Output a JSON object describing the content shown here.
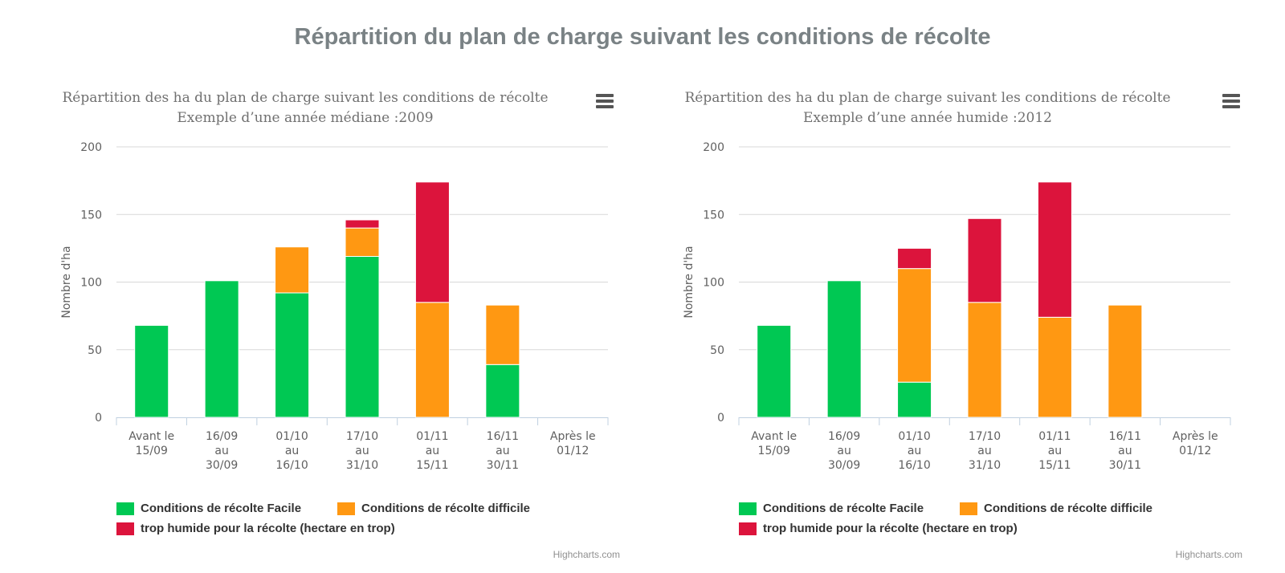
{
  "page_title": "Répartition du plan de charge suivant les conditions de récolte",
  "credits": "Highcharts.com",
  "colors": {
    "facile": "#00c853",
    "difficile": "#ff9812",
    "humide": "#dc143c"
  },
  "chart_data": [
    {
      "type": "bar",
      "stacked": true,
      "title": "Répartition des ha du plan de charge suivant les conditions de récolte",
      "subtitle": "Exemple d’une année médiane :2009",
      "ylabel": "Nombre d'ha",
      "ylim": [
        0,
        200
      ],
      "yticks": [
        0,
        50,
        100,
        150,
        200
      ],
      "categories": [
        [
          "Avant le",
          "15/09"
        ],
        [
          "16/09",
          "au",
          "30/09"
        ],
        [
          "01/10",
          "au",
          "16/10"
        ],
        [
          "17/10",
          "au",
          "31/10"
        ],
        [
          "01/11",
          "au",
          "15/11"
        ],
        [
          "16/11",
          "au",
          "30/11"
        ],
        [
          "Après le",
          "01/12"
        ]
      ],
      "series": [
        {
          "name": "Conditions de récolte Facile",
          "color": "#00c853",
          "values": [
            68,
            101,
            92,
            119,
            0,
            39,
            0
          ]
        },
        {
          "name": "Conditions de récolte difficile",
          "color": "#ff9812",
          "values": [
            0,
            0,
            34,
            21,
            85,
            44,
            0
          ]
        },
        {
          "name": "trop humide pour la récolte (hectare en trop)",
          "color": "#dc143c",
          "values": [
            0,
            0,
            0,
            6,
            89,
            0,
            0
          ]
        }
      ],
      "legend_position": "bottom"
    },
    {
      "type": "bar",
      "stacked": true,
      "title": "Répartition des ha du plan de charge suivant les conditions de récolte",
      "subtitle": "Exemple d’une année humide :2012",
      "ylabel": "Nombre d'ha",
      "ylim": [
        0,
        200
      ],
      "yticks": [
        0,
        50,
        100,
        150,
        200
      ],
      "categories": [
        [
          "Avant le",
          "15/09"
        ],
        [
          "16/09",
          "au",
          "30/09"
        ],
        [
          "01/10",
          "au",
          "16/10"
        ],
        [
          "17/10",
          "au",
          "31/10"
        ],
        [
          "01/11",
          "au",
          "15/11"
        ],
        [
          "16/11",
          "au",
          "30/11"
        ],
        [
          "Après le",
          "01/12"
        ]
      ],
      "series": [
        {
          "name": "Conditions de récolte Facile",
          "color": "#00c853",
          "values": [
            68,
            101,
            26,
            0,
            0,
            0,
            0
          ]
        },
        {
          "name": "Conditions de récolte difficile",
          "color": "#ff9812",
          "values": [
            0,
            0,
            84,
            85,
            74,
            83,
            0
          ]
        },
        {
          "name": "trop humide pour la récolte (hectare en trop)",
          "color": "#dc143c",
          "values": [
            0,
            0,
            15,
            62,
            100,
            0,
            0
          ]
        }
      ],
      "legend_position": "bottom"
    }
  ]
}
